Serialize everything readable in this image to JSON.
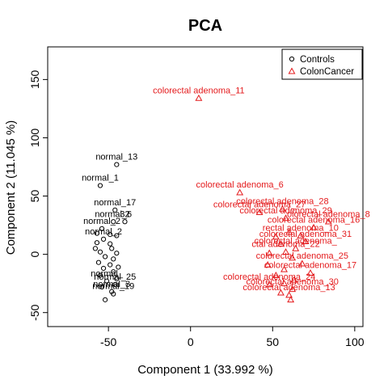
{
  "chart_data": {
    "type": "scatter",
    "title": "PCA",
    "xlabel": "Component 1 (33.992 %)",
    "ylabel": "Component 2 (11.045 %)",
    "xlim": [
      -87,
      105
    ],
    "ylim": [
      -62,
      178
    ],
    "xticks": [
      -50,
      0,
      50,
      100
    ],
    "yticks": [
      -50,
      0,
      50,
      100,
      150
    ],
    "grid": false,
    "legend_position": "top-right",
    "series": [
      {
        "name": "Controls",
        "marker": "circle",
        "color": "#000000",
        "points": [
          {
            "x": -45,
            "y": 77,
            "label": "normal_13"
          },
          {
            "x": -55,
            "y": 59,
            "label": "normal_1"
          },
          {
            "x": -46,
            "y": 38,
            "label": "normal_17"
          },
          {
            "x": -47,
            "y": 28,
            "label": "normal_6"
          },
          {
            "x": -40,
            "y": 28,
            "label": "32"
          },
          {
            "x": -54,
            "y": 22,
            "label": "normal_2"
          },
          {
            "x": -57,
            "y": 18,
            "label": ""
          },
          {
            "x": -49,
            "y": 17,
            "label": ""
          },
          {
            "x": -45,
            "y": 16,
            "label": ""
          },
          {
            "x": -53,
            "y": 13,
            "label": "normal_2"
          },
          {
            "x": -57,
            "y": 10,
            "label": ""
          },
          {
            "x": -49,
            "y": 9,
            "label": ""
          },
          {
            "x": -58,
            "y": 5,
            "label": ""
          },
          {
            "x": -48,
            "y": 5,
            "label": ""
          },
          {
            "x": -55,
            "y": 2,
            "label": ""
          },
          {
            "x": -45,
            "y": 1,
            "label": ""
          },
          {
            "x": -52,
            "y": -2,
            "label": ""
          },
          {
            "x": -47,
            "y": -4,
            "label": ""
          },
          {
            "x": -56,
            "y": -7,
            "label": ""
          },
          {
            "x": -49,
            "y": -9,
            "label": ""
          },
          {
            "x": -44,
            "y": -11,
            "label": ""
          },
          {
            "x": -53,
            "y": -12,
            "label": ""
          },
          {
            "x": -47,
            "y": -15,
            "label": ""
          },
          {
            "x": -55,
            "y": -18,
            "label": ""
          },
          {
            "x": -45,
            "y": -21,
            "label": ""
          },
          {
            "x": -51,
            "y": -23,
            "label": "normal_"
          },
          {
            "x": -46,
            "y": -26,
            "label": "normal_25"
          },
          {
            "x": -54,
            "y": -28,
            "label": ""
          },
          {
            "x": -48,
            "y": -32,
            "label": "normal_3"
          },
          {
            "x": -47,
            "y": -34,
            "label": "normal_19"
          },
          {
            "x": -52,
            "y": -39,
            "label": ""
          }
        ]
      },
      {
        "name": "ColonCancer",
        "marker": "triangle",
        "color": "#e41a1c",
        "points": [
          {
            "x": 5,
            "y": 134,
            "label": "colorectal adenoma_11"
          },
          {
            "x": 30,
            "y": 53,
            "label": "colorectal adenoma_6"
          },
          {
            "x": 56,
            "y": 39,
            "label": "colorectal adenoma_28"
          },
          {
            "x": 42,
            "y": 36,
            "label": "colorectal adenoma_27"
          },
          {
            "x": 58,
            "y": 31,
            "label": "colorectal adenoma_29"
          },
          {
            "x": 84,
            "y": 28,
            "label": "olorectal adenoma_8"
          },
          {
            "x": 75,
            "y": 23,
            "label": "colorectal adenoma_16"
          },
          {
            "x": 60,
            "y": 19,
            "label": ""
          },
          {
            "x": 67,
            "y": 16,
            "label": "rectal adenoma_10"
          },
          {
            "x": 52,
            "y": 15,
            "label": ""
          },
          {
            "x": 70,
            "y": 11,
            "label": "colorectal adenoma_31"
          },
          {
            "x": 55,
            "y": 9,
            "label": ""
          },
          {
            "x": 64,
            "y": 5,
            "label": "colorectal adenoma_"
          },
          {
            "x": 58,
            "y": 2,
            "label": "ctal adenoma_22"
          },
          {
            "x": 48,
            "y": 1,
            "label": ""
          },
          {
            "x": 62,
            "y": -3,
            "label": ""
          },
          {
            "x": 68,
            "y": -8,
            "label": "colorectal adenoma_25"
          },
          {
            "x": 47,
            "y": -9,
            "label": ""
          },
          {
            "x": 57,
            "y": -13,
            "label": ""
          },
          {
            "x": 73,
            "y": -16,
            "label": "colorectal adenoma_17"
          },
          {
            "x": 52,
            "y": -18,
            "label": ""
          },
          {
            "x": 63,
            "y": -22,
            "label": ""
          },
          {
            "x": 57,
            "y": -25,
            "label": ""
          },
          {
            "x": 48,
            "y": -26,
            "label": "colorectal adenoma_24"
          },
          {
            "x": 62,
            "y": -30,
            "label": "colorectal adenoma_30"
          },
          {
            "x": 55,
            "y": -33,
            "label": ""
          },
          {
            "x": 60,
            "y": -35,
            "label": "colorectal adenoma_13"
          },
          {
            "x": 61,
            "y": -39,
            "label": ""
          }
        ]
      }
    ]
  }
}
